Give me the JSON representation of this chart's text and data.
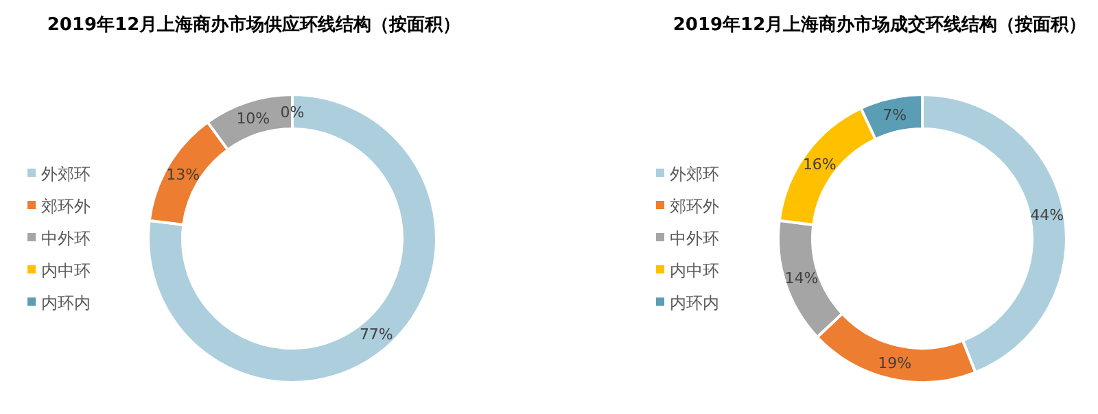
{
  "chart_data": [
    {
      "type": "donut",
      "title": "2019年12月上海商办市场供应环线结构（按面积）",
      "categories": [
        "外郊环",
        "郊环外",
        "中外环",
        "内中环",
        "内环内"
      ],
      "values": [
        77,
        13,
        10,
        0,
        0
      ],
      "value_labels": [
        "77%",
        "13%",
        "10%",
        "0%",
        null
      ],
      "colors": [
        "#adcfdd",
        "#ed7d31",
        "#a5a5a5",
        "#ffc000",
        "#5b9db5"
      ],
      "legend": "left"
    },
    {
      "type": "donut",
      "title": "2019年12月上海商办市场成交环线结构（按面积）",
      "categories": [
        "外郊环",
        "郊环外",
        "中外环",
        "内中环",
        "内环内"
      ],
      "values": [
        44,
        19,
        14,
        16,
        7
      ],
      "value_labels": [
        "44%",
        "19%",
        "14%",
        "16%",
        "7%"
      ],
      "colors": [
        "#adcfdd",
        "#ed7d31",
        "#a5a5a5",
        "#ffc000",
        "#5b9db5"
      ],
      "legend": "left"
    }
  ]
}
